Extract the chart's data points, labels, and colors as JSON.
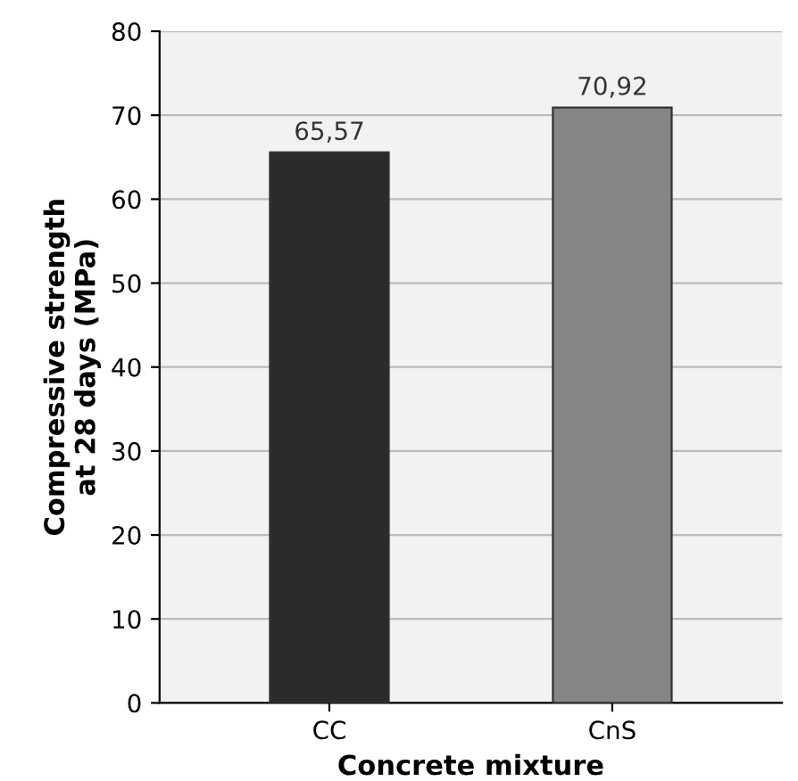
{
  "chart_data": {
    "type": "bar",
    "categories": [
      "CC",
      "CnS"
    ],
    "values": [
      65.57,
      70.92
    ],
    "colors": [
      "#2b2b2b",
      "#858585"
    ],
    "value_labels": [
      "65,57",
      "70,92"
    ],
    "xlabel": "Concrete mixture",
    "ylabel": "Compressive strength\nat 28 days (MPa)",
    "ylim": [
      0,
      80
    ],
    "yticks": [
      0,
      10,
      20,
      30,
      40,
      50,
      60,
      70,
      80
    ],
    "grid": "y"
  }
}
